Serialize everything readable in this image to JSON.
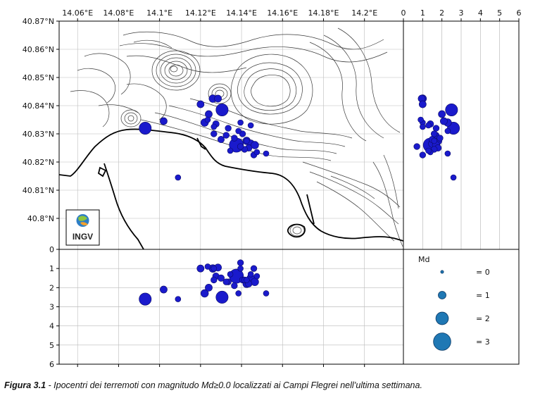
{
  "map": {
    "lon_ticks": [
      "14.06°E",
      "14.08°E",
      "14.1°E",
      "14.12°E",
      "14.14°E",
      "14.16°E",
      "14.18°E",
      "14.2°E"
    ],
    "lon_values": [
      14.06,
      14.08,
      14.1,
      14.12,
      14.14,
      14.16,
      14.18,
      14.2
    ],
    "lat_ticks": [
      "40.8°N",
      "40.81°N",
      "40.82°N",
      "40.83°N",
      "40.84°N",
      "40.85°N",
      "40.86°N",
      "40.87°N"
    ],
    "lat_values": [
      40.8,
      40.81,
      40.82,
      40.83,
      40.84,
      40.85,
      40.86,
      40.87
    ],
    "lon_range": [
      14.051,
      14.219
    ],
    "lat_range": [
      40.789,
      40.87
    ],
    "logo_text": "INGV"
  },
  "right_panel": {
    "x_ticks": [
      "0",
      "1",
      "2",
      "3",
      "4",
      "5",
      "6"
    ],
    "x_values": [
      0,
      1,
      2,
      3,
      4,
      5,
      6
    ],
    "x_range": [
      0,
      6
    ],
    "grid": true
  },
  "bottom_panel": {
    "y_ticks": [
      "0",
      "1",
      "2",
      "3",
      "4",
      "5",
      "6"
    ],
    "y_values": [
      0,
      1,
      2,
      3,
      4,
      5,
      6
    ],
    "y_range": [
      0,
      6
    ],
    "bottom_label": "0"
  },
  "legend": {
    "title": "Md",
    "entries": [
      {
        "label": "= 0",
        "md": 0
      },
      {
        "label": "= 1",
        "md": 1
      },
      {
        "label": "= 2",
        "md": 2
      },
      {
        "label": "= 3",
        "md": 3
      }
    ]
  },
  "colors": {
    "event_fill": "#1a1acc",
    "event_stroke": "#0a0a66",
    "legend_fill": "#1f78b4",
    "contour": "#3a3a3a",
    "coast": "#000000",
    "grid": "#bbbbbb"
  },
  "chart_data": {
    "type": "scatter",
    "fields": [
      "lon",
      "lat",
      "depth_km",
      "md"
    ],
    "events": [
      [
        14.093,
        40.832,
        2.6,
        1.8
      ],
      [
        14.109,
        40.8145,
        2.6,
        0.5
      ],
      [
        14.102,
        40.8345,
        2.1,
        0.8
      ],
      [
        14.126,
        40.8425,
        1.0,
        0.9
      ],
      [
        14.1285,
        40.8425,
        0.95,
        0.8
      ],
      [
        14.12,
        40.8405,
        1.0,
        0.8
      ],
      [
        14.1305,
        40.8385,
        2.5,
        1.8
      ],
      [
        14.124,
        40.837,
        2.0,
        0.8
      ],
      [
        14.122,
        40.834,
        2.3,
        0.9
      ],
      [
        14.1275,
        40.8335,
        1.4,
        0.7
      ],
      [
        14.1335,
        40.832,
        1.7,
        0.6
      ],
      [
        14.1325,
        40.8295,
        1.7,
        0.6
      ],
      [
        14.1265,
        40.83,
        1.6,
        0.6
      ],
      [
        14.13,
        40.828,
        1.5,
        0.7
      ],
      [
        14.1375,
        40.826,
        1.4,
        2.2
      ],
      [
        14.1365,
        40.8285,
        1.9,
        0.6
      ],
      [
        14.1405,
        40.83,
        1.6,
        0.6
      ],
      [
        14.1425,
        40.8275,
        1.8,
        0.9
      ],
      [
        14.1445,
        40.8265,
        1.5,
        0.9
      ],
      [
        14.1465,
        40.826,
        1.7,
        0.9
      ],
      [
        14.1435,
        40.825,
        1.8,
        0.7
      ],
      [
        14.1415,
        40.8245,
        1.6,
        0.6
      ],
      [
        14.146,
        40.8225,
        1.0,
        0.6
      ],
      [
        14.1395,
        40.8255,
        0.7,
        0.6
      ],
      [
        14.152,
        40.823,
        2.3,
        0.5
      ],
      [
        14.1475,
        40.8235,
        1.4,
        0.5
      ],
      [
        14.1395,
        40.834,
        1.0,
        0.5
      ],
      [
        14.1385,
        40.831,
        2.3,
        0.5
      ],
      [
        14.1345,
        40.824,
        1.3,
        0.5
      ],
      [
        14.1425,
        40.8275,
        1.6,
        0.5
      ],
      [
        14.1445,
        40.833,
        1.3,
        0.5
      ],
      [
        14.1235,
        40.835,
        0.9,
        0.5
      ],
      [
        14.1265,
        40.8325,
        1.0,
        0.5
      ]
    ]
  },
  "caption": {
    "label": "Figura 3.1",
    "text": " - Ipocentri dei terremoti con magnitudo Md≥0.0 localizzati ai Campi Flegrei nell’ultima settimana."
  }
}
